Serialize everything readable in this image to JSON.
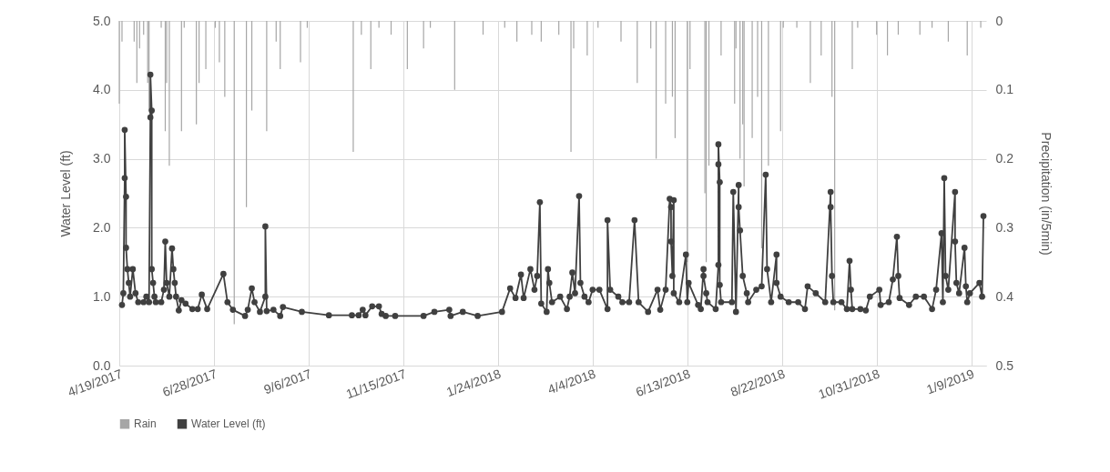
{
  "chart_data": {
    "type": "line",
    "ylabel": "Water Level (ft)",
    "y2label": "Precipitation (in/5min)",
    "xlim": [
      "2017-04-19",
      "2019-01-20"
    ],
    "xticks": [
      {
        "value": "2017-04-19",
        "label": "4/19/2017"
      },
      {
        "value": "2017-06-28",
        "label": "6/28/2017"
      },
      {
        "value": "2017-09-06",
        "label": "9/6/2017"
      },
      {
        "value": "2017-11-15",
        "label": "11/15/2017"
      },
      {
        "value": "2018-01-24",
        "label": "1/24/2018"
      },
      {
        "value": "2018-04-04",
        "label": "4/4/2018"
      },
      {
        "value": "2018-06-13",
        "label": "6/13/2018"
      },
      {
        "value": "2018-08-22",
        "label": "8/22/2018"
      },
      {
        "value": "2018-10-31",
        "label": "10/31/2018"
      },
      {
        "value": "2019-01-09",
        "label": "1/9/2019"
      }
    ],
    "ylim": [
      0,
      5
    ],
    "yticks": [
      {
        "value": 0,
        "label": "0.0"
      },
      {
        "value": 1,
        "label": "1.0"
      },
      {
        "value": 2,
        "label": "2.0"
      },
      {
        "value": 3,
        "label": "3.0"
      },
      {
        "value": 4,
        "label": "4.0"
      },
      {
        "value": 5,
        "label": "5.0"
      }
    ],
    "y2lim": [
      0.5,
      0
    ],
    "y2ticks": [
      0,
      0.1,
      0.2,
      0.3,
      0.4,
      0.5
    ],
    "grid": true,
    "legend": "bottom",
    "series": [
      {
        "name": "Rain",
        "type": "bar",
        "axis": "y2",
        "color": "#a6a6a6",
        "x": [
          "2017-04-19",
          "2017-04-21",
          "2017-04-30",
          "2017-05-02",
          "2017-05-04",
          "2017-05-07",
          "2017-05-10",
          "2017-05-11",
          "2017-05-20",
          "2017-05-23",
          "2017-05-24",
          "2017-05-26",
          "2017-06-04",
          "2017-06-06",
          "2017-06-15",
          "2017-06-17",
          "2017-06-22",
          "2017-06-29",
          "2017-07-02",
          "2017-07-06",
          "2017-07-13",
          "2017-07-22",
          "2017-07-26",
          "2017-08-06",
          "2017-08-13",
          "2017-08-16",
          "2017-08-31",
          "2017-09-05",
          "2017-10-09",
          "2017-10-15",
          "2017-10-22",
          "2017-10-28",
          "2017-11-06",
          "2017-11-18",
          "2017-11-30",
          "2017-12-05",
          "2017-12-23",
          "2018-01-13",
          "2018-01-29",
          "2018-02-07",
          "2018-02-18",
          "2018-02-25",
          "2018-03-10",
          "2018-03-19",
          "2018-03-21",
          "2018-03-31",
          "2018-04-08",
          "2018-04-25",
          "2018-05-07",
          "2018-05-17",
          "2018-05-21",
          "2018-05-28",
          "2018-06-02",
          "2018-06-04",
          "2018-06-13",
          "2018-06-15",
          "2018-06-26",
          "2018-06-27",
          "2018-06-29",
          "2018-07-08",
          "2018-07-18",
          "2018-07-19",
          "2018-07-22",
          "2018-07-24",
          "2018-07-25",
          "2018-07-31",
          "2018-08-04",
          "2018-08-07",
          "2018-08-12",
          "2018-08-21",
          "2018-08-23",
          "2018-09-02",
          "2018-09-12",
          "2018-09-20",
          "2018-09-28",
          "2018-09-30",
          "2018-10-13",
          "2018-10-17",
          "2018-10-31",
          "2018-11-08",
          "2018-11-16",
          "2018-12-02",
          "2018-12-11",
          "2018-12-23",
          "2019-01-06",
          "2019-01-16"
        ],
        "values": [
          0.12,
          0.03,
          0.03,
          0.09,
          0.04,
          0.02,
          0.09,
          0.13,
          0.01,
          0.16,
          0.09,
          0.21,
          0.16,
          0.01,
          0.15,
          0.09,
          0.07,
          0.01,
          0.06,
          0.11,
          0.44,
          0.27,
          0.13,
          0.16,
          0.03,
          0.07,
          0.06,
          0.01,
          0.19,
          0.02,
          0.07,
          0.01,
          0.02,
          0.07,
          0.04,
          0.01,
          0.1,
          0.02,
          0.01,
          0.03,
          0.02,
          0.03,
          0.02,
          0.19,
          0.04,
          0.05,
          0.01,
          0.03,
          0.09,
          0.04,
          0.2,
          0.12,
          0.11,
          0.17,
          0.35,
          0.07,
          0.25,
          0.35,
          0.21,
          0.05,
          0.12,
          0.04,
          0.2,
          0.15,
          0.24,
          0.17,
          0.11,
          0.33,
          0.21,
          0.16,
          0.01,
          0.01,
          0.09,
          0.05,
          0.11,
          0.42,
          0.07,
          0.01,
          0.02,
          0.05,
          0.02,
          0.02,
          0.01,
          0.03,
          0.05,
          0.01
        ]
      },
      {
        "name": "Water Level (ft)",
        "color": "#404040",
        "marker": "circle",
        "x": [
          "2017-04-21",
          "2017-04-22",
          "2017-04-23",
          "2017-04-23",
          "2017-04-24",
          "2017-04-24",
          "2017-04-25",
          "2017-04-26",
          "2017-04-27",
          "2017-04-29",
          "2017-05-01",
          "2017-05-03",
          "2017-05-07",
          "2017-05-09",
          "2017-05-11",
          "2017-05-12",
          "2017-05-12",
          "2017-05-13",
          "2017-05-13",
          "2017-05-14",
          "2017-05-15",
          "2017-05-16",
          "2017-05-20",
          "2017-05-22",
          "2017-05-23",
          "2017-05-24",
          "2017-05-26",
          "2017-05-28",
          "2017-05-29",
          "2017-05-30",
          "2017-05-31",
          "2017-06-02",
          "2017-06-04",
          "2017-06-07",
          "2017-06-12",
          "2017-06-16",
          "2017-06-19",
          "2017-06-23",
          "2017-07-05",
          "2017-07-08",
          "2017-07-12",
          "2017-07-21",
          "2017-07-23",
          "2017-07-26",
          "2017-07-28",
          "2017-08-01",
          "2017-08-05",
          "2017-08-05",
          "2017-08-06",
          "2017-08-11",
          "2017-08-16",
          "2017-08-18",
          "2017-09-01",
          "2017-09-21",
          "2017-10-08",
          "2017-10-13",
          "2017-10-16",
          "2017-10-18",
          "2017-10-23",
          "2017-10-28",
          "2017-10-30",
          "2017-11-02",
          "2017-11-09",
          "2017-11-30",
          "2017-12-08",
          "2017-12-19",
          "2017-12-20",
          "2017-12-29",
          "2018-01-09",
          "2018-01-27",
          "2018-02-02",
          "2018-02-06",
          "2018-02-10",
          "2018-02-12",
          "2018-02-17",
          "2018-02-20",
          "2018-02-22",
          "2018-02-24",
          "2018-02-25",
          "2018-03-01",
          "2018-03-02",
          "2018-03-03",
          "2018-03-05",
          "2018-03-11",
          "2018-03-16",
          "2018-03-18",
          "2018-03-20",
          "2018-03-22",
          "2018-03-25",
          "2018-03-26",
          "2018-03-29",
          "2018-04-01",
          "2018-04-04",
          "2018-04-09",
          "2018-04-15",
          "2018-04-15",
          "2018-04-17",
          "2018-04-23",
          "2018-04-26",
          "2018-05-01",
          "2018-05-05",
          "2018-05-08",
          "2018-05-15",
          "2018-05-22",
          "2018-05-24",
          "2018-05-28",
          "2018-05-31",
          "2018-06-01",
          "2018-06-01",
          "2018-06-02",
          "2018-06-03",
          "2018-06-03",
          "2018-06-07",
          "2018-06-12",
          "2018-06-13",
          "2018-06-14",
          "2018-06-21",
          "2018-06-23",
          "2018-06-25",
          "2018-06-25",
          "2018-06-27",
          "2018-06-28",
          "2018-07-04",
          "2018-07-06",
          "2018-07-06",
          "2018-07-06",
          "2018-07-07",
          "2018-07-07",
          "2018-07-08",
          "2018-07-16",
          "2018-07-17",
          "2018-07-19",
          "2018-07-21",
          "2018-07-21",
          "2018-07-22",
          "2018-07-24",
          "2018-07-27",
          "2018-07-28",
          "2018-08-03",
          "2018-08-07",
          "2018-08-10",
          "2018-08-11",
          "2018-08-14",
          "2018-08-18",
          "2018-08-18",
          "2018-08-21",
          "2018-08-27",
          "2018-09-03",
          "2018-09-08",
          "2018-09-10",
          "2018-09-16",
          "2018-09-23",
          "2018-09-27",
          "2018-09-27",
          "2018-09-28",
          "2018-09-29",
          "2018-10-05",
          "2018-10-09",
          "2018-10-11",
          "2018-10-12",
          "2018-10-13",
          "2018-10-19",
          "2018-10-23",
          "2018-10-26",
          "2018-11-02",
          "2018-11-03",
          "2018-11-09",
          "2018-11-12",
          "2018-11-15",
          "2018-11-16",
          "2018-11-17",
          "2018-11-24",
          "2018-11-29",
          "2018-12-05",
          "2018-12-11",
          "2018-12-14",
          "2018-12-18",
          "2018-12-19",
          "2018-12-20",
          "2018-12-21",
          "2018-12-23",
          "2018-12-28",
          "2018-12-28",
          "2018-12-29",
          "2018-12-31",
          "2019-01-04",
          "2019-01-05",
          "2019-01-06",
          "2019-01-08",
          "2019-01-15",
          "2019-01-17",
          "2019-01-18"
        ],
        "values": [
          0.88,
          1.05,
          2.72,
          3.42,
          2.45,
          1.71,
          1.4,
          1.2,
          1.0,
          1.4,
          1.05,
          0.92,
          0.92,
          1.0,
          0.92,
          3.6,
          4.22,
          3.7,
          1.4,
          1.2,
          1.0,
          0.92,
          0.92,
          1.1,
          1.8,
          1.2,
          1.0,
          1.7,
          1.4,
          1.2,
          1.0,
          0.8,
          0.95,
          0.9,
          0.82,
          0.82,
          1.03,
          0.82,
          1.33,
          0.92,
          0.81,
          0.72,
          0.81,
          1.12,
          0.92,
          0.78,
          1.0,
          2.02,
          0.79,
          0.81,
          0.72,
          0.85,
          0.78,
          0.73,
          0.73,
          0.73,
          0.81,
          0.73,
          0.86,
          0.86,
          0.75,
          0.72,
          0.72,
          0.72,
          0.78,
          0.81,
          0.72,
          0.78,
          0.72,
          0.78,
          1.12,
          0.98,
          1.32,
          0.98,
          1.4,
          1.1,
          1.3,
          2.37,
          0.9,
          0.78,
          1.4,
          1.2,
          0.92,
          1.0,
          0.82,
          1.0,
          1.35,
          1.05,
          2.46,
          1.2,
          1.0,
          0.92,
          1.1,
          1.1,
          0.82,
          2.11,
          1.1,
          1.0,
          0.92,
          0.92,
          2.11,
          0.92,
          0.78,
          1.1,
          0.81,
          1.1,
          2.42,
          2.3,
          1.8,
          1.3,
          2.4,
          1.05,
          0.92,
          1.61,
          0.92,
          1.2,
          0.88,
          0.82,
          1.4,
          1.3,
          1.05,
          0.92,
          0.82,
          1.46,
          2.92,
          3.21,
          2.66,
          1.17,
          0.92,
          0.92,
          2.52,
          0.78,
          2.62,
          2.3,
          1.96,
          1.3,
          1.05,
          0.92,
          1.1,
          1.15,
          2.77,
          1.4,
          0.92,
          1.61,
          1.2,
          1.0,
          0.92,
          0.92,
          0.82,
          1.15,
          1.05,
          0.92,
          2.52,
          2.3,
          1.3,
          0.92,
          0.92,
          0.82,
          1.52,
          1.1,
          0.82,
          0.82,
          0.8,
          1.0,
          1.1,
          0.88,
          0.92,
          1.25,
          1.87,
          1.3,
          0.98,
          0.88,
          1.0,
          1.0,
          0.82,
          1.1,
          1.92,
          0.92,
          2.72,
          1.3,
          1.1,
          2.52,
          1.8,
          1.2,
          1.05,
          1.71,
          1.15,
          0.92,
          1.05,
          1.2,
          1.0,
          2.17
        ]
      }
    ]
  }
}
